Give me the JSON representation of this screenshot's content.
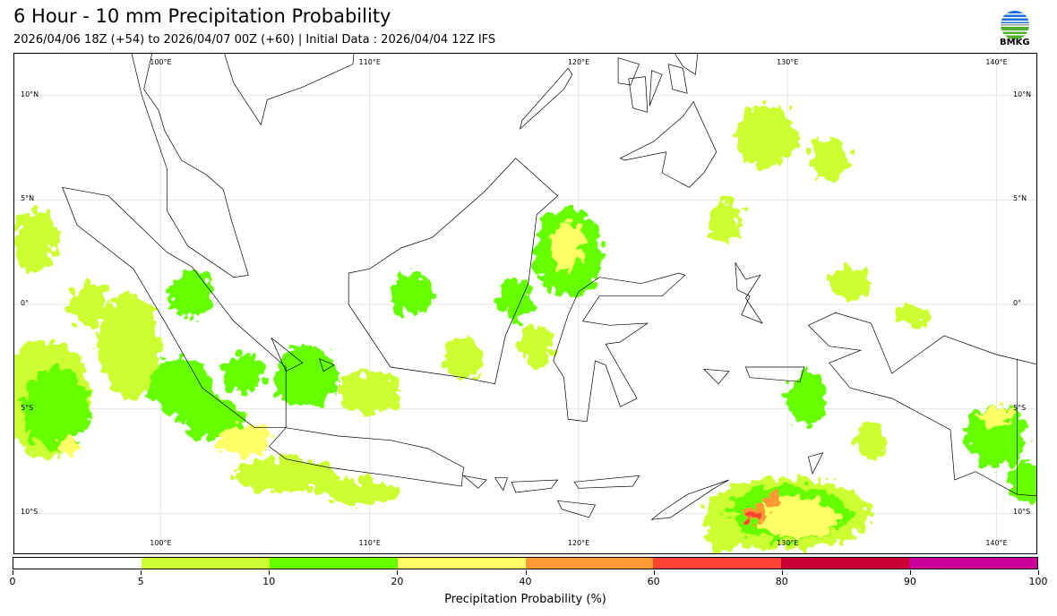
{
  "header": {
    "title": "6 Hour - 10 mm Precipitation Probability",
    "subtitle": "2026/04/06 18Z (+54) to 2026/04/07 00Z (+60) | Initial Data : 2026/04/04 12Z IFS",
    "logo_text": "BMKG"
  },
  "map": {
    "extent": {
      "lon": [
        93.0,
        142.0
      ],
      "lat": [
        -12.0,
        12.0
      ]
    },
    "lon_labels": [
      {
        "lon": 100,
        "label": "100°E"
      },
      {
        "lon": 110,
        "label": "110°E"
      },
      {
        "lon": 120,
        "label": "120°E"
      },
      {
        "lon": 130,
        "label": "130°E"
      },
      {
        "lon": 140,
        "label": "140°E"
      }
    ],
    "lat_labels": [
      {
        "lat": 10,
        "label": "10°N"
      },
      {
        "lat": 5,
        "label": "5°N"
      },
      {
        "lat": 0,
        "label": "0°"
      },
      {
        "lat": -5,
        "label": "5°S"
      },
      {
        "lat": -10,
        "label": "10°S"
      }
    ],
    "land": [
      {
        "name": "sumatra",
        "pts": [
          [
            95.3,
            5.6
          ],
          [
            97.5,
            5.2
          ],
          [
            100.3,
            2.5
          ],
          [
            101.5,
            1.8
          ],
          [
            103.5,
            -0.8
          ],
          [
            106,
            -3
          ],
          [
            106,
            -5.9
          ],
          [
            104.5,
            -5.9
          ],
          [
            102,
            -4
          ],
          [
            100.3,
            -1
          ],
          [
            98.7,
            1.7
          ],
          [
            96,
            3.8
          ]
        ]
      },
      {
        "name": "borneo",
        "pts": [
          [
            109,
            1.5
          ],
          [
            110,
            1.7
          ],
          [
            111.5,
            2.7
          ],
          [
            113,
            3.2
          ],
          [
            115.5,
            5.4
          ],
          [
            117,
            7
          ],
          [
            119,
            5.2
          ],
          [
            118,
            4.3
          ],
          [
            117.6,
            1
          ],
          [
            116.5,
            -1.5
          ],
          [
            116,
            -3.8
          ],
          [
            114.5,
            -3.5
          ],
          [
            111,
            -3
          ],
          [
            110,
            -1.5
          ],
          [
            109,
            0
          ]
        ]
      },
      {
        "name": "java",
        "pts": [
          [
            105.2,
            -6.8
          ],
          [
            106,
            -5.9
          ],
          [
            108.5,
            -6.3
          ],
          [
            111,
            -6.5
          ],
          [
            112.8,
            -6.9
          ],
          [
            114.5,
            -7.8
          ],
          [
            114.4,
            -8.7
          ],
          [
            111,
            -8.2
          ],
          [
            108,
            -7.8
          ],
          [
            106,
            -7.4
          ]
        ]
      },
      {
        "name": "sulawesi",
        "pts": [
          [
            119.5,
            -5.5
          ],
          [
            119.3,
            -3.5
          ],
          [
            118.8,
            -2.7
          ],
          [
            119.5,
            -0.5
          ],
          [
            120,
            0.6
          ],
          [
            121,
            1.3
          ],
          [
            123,
            1
          ],
          [
            124.8,
            1.5
          ],
          [
            125.1,
            1.4
          ],
          [
            124,
            0.4
          ],
          [
            121,
            0.4
          ],
          [
            120.2,
            -0.8
          ],
          [
            121.5,
            -1
          ],
          [
            123.3,
            -0.9
          ],
          [
            122,
            -1.8
          ],
          [
            121.3,
            -1.9
          ],
          [
            122.8,
            -4.5
          ],
          [
            122,
            -4.9
          ],
          [
            121.3,
            -2.9
          ],
          [
            120.8,
            -2.7
          ],
          [
            120.4,
            -5.6
          ]
        ]
      },
      {
        "name": "new-guinea",
        "pts": [
          [
            131,
            -1
          ],
          [
            132.3,
            -0.4
          ],
          [
            134,
            -0.9
          ],
          [
            135,
            -3.3
          ],
          [
            137.5,
            -1.5
          ],
          [
            140,
            -2.4
          ],
          [
            142.5,
            -3
          ],
          [
            142.5,
            -9.2
          ],
          [
            141,
            -9.1
          ],
          [
            139,
            -8
          ],
          [
            138,
            -8.4
          ],
          [
            137.8,
            -6
          ],
          [
            135,
            -4.5
          ],
          [
            133,
            -4
          ],
          [
            132,
            -2.8
          ],
          [
            133.5,
            -2.2
          ],
          [
            132,
            -2
          ]
        ]
      },
      {
        "name": "malay-peninsula",
        "pts": [
          [
            98.5,
            12.5
          ],
          [
            99.1,
            10
          ],
          [
            100.3,
            6.5
          ],
          [
            100.3,
            4.5
          ],
          [
            101.3,
            2.8
          ],
          [
            103.5,
            1.3
          ],
          [
            104.2,
            1.4
          ],
          [
            103.4,
            4
          ],
          [
            103,
            5.5
          ],
          [
            102.2,
            6.2
          ],
          [
            101,
            6.9
          ],
          [
            100.2,
            8.3
          ],
          [
            99.9,
            9.3
          ],
          [
            99.2,
            10.3
          ],
          [
            99.7,
            12.5
          ]
        ]
      },
      {
        "name": "indochina",
        "pts": [
          [
            102.9,
            12.5
          ],
          [
            103.5,
            10.6
          ],
          [
            104.8,
            8.6
          ],
          [
            105.1,
            9.8
          ],
          [
            106.8,
            10.4
          ],
          [
            109.2,
            11.5
          ],
          [
            109.3,
            12.5
          ]
        ]
      },
      {
        "name": "mindanao",
        "pts": [
          [
            122,
            7
          ],
          [
            123.6,
            7.8
          ],
          [
            125,
            9
          ],
          [
            125.5,
            9.7
          ],
          [
            126.6,
            7.3
          ],
          [
            126,
            6.3
          ],
          [
            125.3,
            5.6
          ],
          [
            124,
            6.3
          ],
          [
            124.2,
            7.3
          ],
          [
            122.2,
            6.9
          ]
        ]
      },
      {
        "name": "palawan",
        "pts": [
          [
            117.2,
            8.4
          ],
          [
            119.3,
            10.3
          ],
          [
            119.7,
            11
          ],
          [
            119.5,
            11.3
          ],
          [
            117.3,
            8.8
          ]
        ]
      },
      {
        "name": "negros",
        "pts": [
          [
            122.4,
            10.8
          ],
          [
            123.2,
            10.9
          ],
          [
            123.3,
            9.2
          ],
          [
            122.6,
            9.4
          ]
        ]
      },
      {
        "name": "panay",
        "pts": [
          [
            121.9,
            11.8
          ],
          [
            122.9,
            11.5
          ],
          [
            122.5,
            10.5
          ],
          [
            121.9,
            10.6
          ]
        ]
      },
      {
        "name": "leyte",
        "pts": [
          [
            124.3,
            11.5
          ],
          [
            125,
            11.3
          ],
          [
            125.2,
            10.1
          ],
          [
            124.5,
            10.3
          ]
        ]
      },
      {
        "name": "samar",
        "pts": [
          [
            124.3,
            12.5
          ],
          [
            125.7,
            12
          ],
          [
            125.6,
            11
          ],
          [
            125,
            11.4
          ]
        ]
      },
      {
        "name": "cebu",
        "pts": [
          [
            123.5,
            11.2
          ],
          [
            124,
            11
          ],
          [
            123.4,
            9.5
          ]
        ]
      },
      {
        "name": "timor",
        "pts": [
          [
            124,
            -9.9
          ],
          [
            125.2,
            -9.1
          ],
          [
            127.2,
            -8.4
          ],
          [
            126.5,
            -8.8
          ],
          [
            124.4,
            -10.2
          ],
          [
            123.5,
            -10.3
          ]
        ]
      },
      {
        "name": "bali",
        "pts": [
          [
            114.5,
            -8.2
          ],
          [
            115.6,
            -8.4
          ],
          [
            115.2,
            -8.8
          ]
        ]
      },
      {
        "name": "lombok",
        "pts": [
          [
            116,
            -8.3
          ],
          [
            116.6,
            -8.3
          ],
          [
            116.4,
            -8.9
          ]
        ]
      },
      {
        "name": "sumbawa",
        "pts": [
          [
            116.8,
            -8.5
          ],
          [
            119,
            -8.4
          ],
          [
            118.7,
            -8.8
          ],
          [
            117,
            -9
          ]
        ]
      },
      {
        "name": "flores",
        "pts": [
          [
            119.8,
            -8.5
          ],
          [
            122.9,
            -8.2
          ],
          [
            122.6,
            -8.7
          ],
          [
            120,
            -8.8
          ]
        ]
      },
      {
        "name": "sumba",
        "pts": [
          [
            119,
            -9.4
          ],
          [
            120.8,
            -9.6
          ],
          [
            120.5,
            -10.2
          ],
          [
            119.2,
            -9.8
          ]
        ]
      },
      {
        "name": "halmahera",
        "pts": [
          [
            127.5,
            2
          ],
          [
            128,
            1.2
          ],
          [
            128.7,
            1.4
          ],
          [
            128,
            0.3
          ],
          [
            128.8,
            -0.9
          ],
          [
            127.8,
            -0.5
          ],
          [
            128.2,
            0.4
          ],
          [
            127.6,
            0.7
          ]
        ]
      },
      {
        "name": "seram",
        "pts": [
          [
            128,
            -3
          ],
          [
            130.8,
            -3
          ],
          [
            130.6,
            -3.7
          ],
          [
            128.2,
            -3.5
          ]
        ]
      },
      {
        "name": "buru",
        "pts": [
          [
            126,
            -3.1
          ],
          [
            127.2,
            -3.2
          ],
          [
            126.7,
            -3.8
          ]
        ]
      },
      {
        "name": "bangka",
        "pts": [
          [
            105.3,
            -1.6
          ],
          [
            106.8,
            -2.8
          ],
          [
            106,
            -3.2
          ]
        ]
      },
      {
        "name": "belitung",
        "pts": [
          [
            107.6,
            -2.6
          ],
          [
            108.3,
            -2.9
          ],
          [
            107.8,
            -3.2
          ]
        ]
      },
      {
        "name": "tanimbar",
        "pts": [
          [
            131,
            -7.3
          ],
          [
            131.7,
            -7.1
          ],
          [
            131.2,
            -8.1
          ]
        ]
      }
    ],
    "precip_areas": [
      {
        "lon": 94.5,
        "lat": -4.5,
        "rx": 2.2,
        "ry": 2.8,
        "cat": 1
      },
      {
        "lon": 95,
        "lat": -5,
        "rx": 1.6,
        "ry": 2,
        "cat": 2
      },
      {
        "lon": 95.6,
        "lat": -6.8,
        "rx": 0.5,
        "ry": 0.4,
        "cat": 3
      },
      {
        "lon": 94,
        "lat": 3,
        "rx": 1,
        "ry": 1.5,
        "cat": 1
      },
      {
        "lon": 96.5,
        "lat": 0,
        "rx": 1,
        "ry": 1,
        "cat": 1
      },
      {
        "lon": 98.5,
        "lat": -2,
        "rx": 1.5,
        "ry": 2.5,
        "cat": 1
      },
      {
        "lon": 101,
        "lat": -4,
        "rx": 1.5,
        "ry": 1.5,
        "cat": 2
      },
      {
        "lon": 102.5,
        "lat": -5.5,
        "rx": 1.5,
        "ry": 1,
        "cat": 2
      },
      {
        "lon": 104,
        "lat": -6.5,
        "rx": 1.2,
        "ry": 0.8,
        "cat": 3
      },
      {
        "lon": 106,
        "lat": -8.2,
        "rx": 2.5,
        "ry": 0.8,
        "cat": 1
      },
      {
        "lon": 109.5,
        "lat": -9,
        "rx": 2,
        "ry": 0.6,
        "cat": 1
      },
      {
        "lon": 101.5,
        "lat": 0.5,
        "rx": 1,
        "ry": 1.2,
        "cat": 2
      },
      {
        "lon": 104,
        "lat": -3.3,
        "rx": 1,
        "ry": 1,
        "cat": 2
      },
      {
        "lon": 107,
        "lat": -3.5,
        "rx": 1.5,
        "ry": 1.5,
        "cat": 2
      },
      {
        "lon": 110,
        "lat": -4.2,
        "rx": 1.5,
        "ry": 1,
        "cat": 1
      },
      {
        "lon": 112,
        "lat": 0.5,
        "rx": 1,
        "ry": 1,
        "cat": 2
      },
      {
        "lon": 114.5,
        "lat": -2.5,
        "rx": 1,
        "ry": 1,
        "cat": 1
      },
      {
        "lon": 119.5,
        "lat": 2.5,
        "rx": 1.6,
        "ry": 2.2,
        "cat": 2
      },
      {
        "lon": 119.5,
        "lat": 2.8,
        "rx": 0.8,
        "ry": 1.2,
        "cat": 3
      },
      {
        "lon": 117,
        "lat": 0.2,
        "rx": 0.8,
        "ry": 1,
        "cat": 2
      },
      {
        "lon": 118,
        "lat": -2,
        "rx": 0.8,
        "ry": 1,
        "cat": 1
      },
      {
        "lon": 130,
        "lat": -10,
        "rx": 4,
        "ry": 1.7,
        "cat": 1
      },
      {
        "lon": 130,
        "lat": -10,
        "rx": 3,
        "ry": 1.3,
        "cat": 2
      },
      {
        "lon": 130.5,
        "lat": -10.2,
        "rx": 2,
        "ry": 1,
        "cat": 3
      },
      {
        "lon": 128.5,
        "lat": -10,
        "rx": 0.6,
        "ry": 0.4,
        "cat": 4
      },
      {
        "lon": 128.3,
        "lat": -10.1,
        "rx": 0.3,
        "ry": 0.2,
        "cat": 5
      },
      {
        "lon": 129.3,
        "lat": -9.3,
        "rx": 0.3,
        "ry": 0.3,
        "cat": 4
      },
      {
        "lon": 127,
        "lat": -11,
        "rx": 0.8,
        "ry": 1,
        "cat": 1
      },
      {
        "lon": 131,
        "lat": -4.5,
        "rx": 1,
        "ry": 1.2,
        "cat": 2
      },
      {
        "lon": 134,
        "lat": -6.5,
        "rx": 0.8,
        "ry": 0.8,
        "cat": 1
      },
      {
        "lon": 140,
        "lat": -6.3,
        "rx": 1.5,
        "ry": 1.5,
        "cat": 2
      },
      {
        "lon": 140,
        "lat": -5.3,
        "rx": 0.7,
        "ry": 0.5,
        "cat": 3
      },
      {
        "lon": 141.5,
        "lat": -8.5,
        "rx": 1,
        "ry": 1,
        "cat": 2
      },
      {
        "lon": 129,
        "lat": 8,
        "rx": 1.5,
        "ry": 1.5,
        "cat": 1
      },
      {
        "lon": 132,
        "lat": 7,
        "rx": 1,
        "ry": 1,
        "cat": 1
      },
      {
        "lon": 127,
        "lat": 4,
        "rx": 0.8,
        "ry": 1,
        "cat": 1
      },
      {
        "lon": 133,
        "lat": 1,
        "rx": 1,
        "ry": 0.8,
        "cat": 1
      },
      {
        "lon": 136,
        "lat": -0.5,
        "rx": 0.8,
        "ry": 0.5,
        "cat": 1
      }
    ]
  },
  "colorbar": {
    "colors": [
      "#ffffff",
      "#ccff33",
      "#66ff00",
      "#ffff66",
      "#ff9933",
      "#ff4433",
      "#cc0033",
      "#cc0099"
    ],
    "tick_labels": [
      "0",
      "5",
      "10",
      "20",
      "40",
      "60",
      "80",
      "90",
      "100"
    ],
    "label": "Precipitation Probability (%)"
  }
}
